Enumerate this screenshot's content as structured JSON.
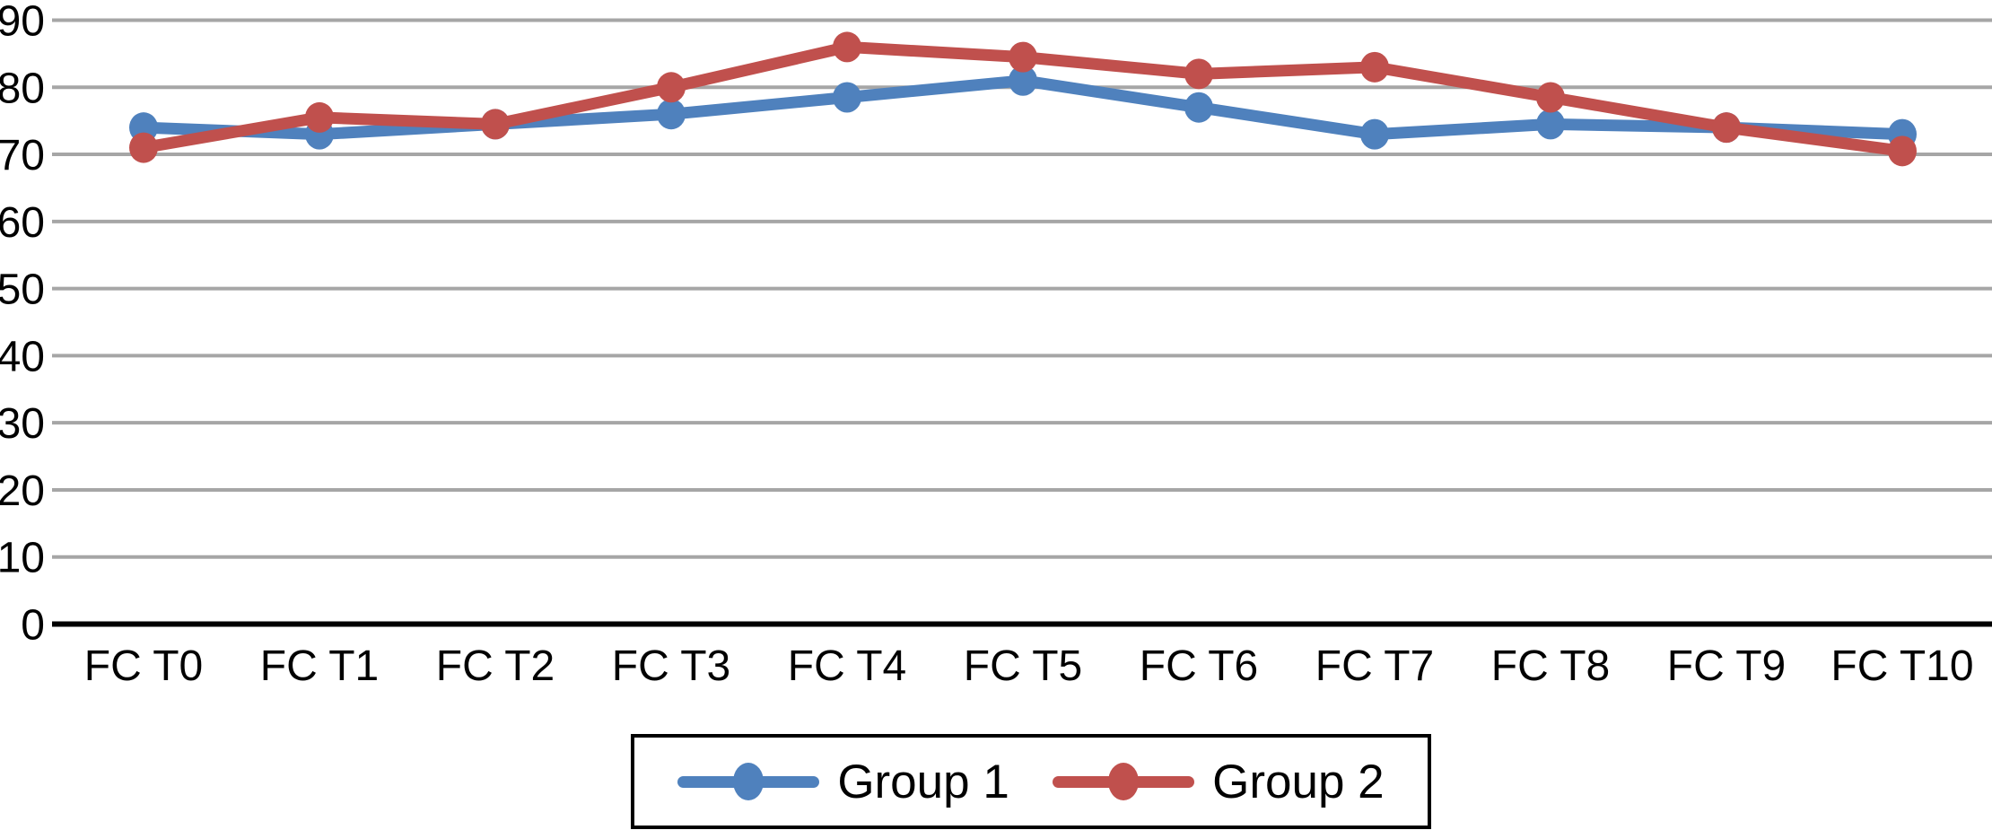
{
  "figure": {
    "background_color": "#ffffff",
    "text_color": "#000000"
  },
  "chart_data": {
    "type": "line",
    "title": "",
    "xlabel": "",
    "ylabel": "",
    "categories": [
      "FC T0",
      "FC T1",
      "FC T2",
      "FC T3",
      "FC T4",
      "FC T5",
      "FC T6",
      "FC T7",
      "FC T8",
      "FC T9",
      "FC T10"
    ],
    "series": [
      {
        "name": "Group 1",
        "color": "#4F81BD",
        "marker": "circle",
        "values": [
          74,
          73,
          74.5,
          76,
          78.5,
          81,
          77,
          73,
          74.5,
          74,
          73
        ]
      },
      {
        "name": "Group 2",
        "color": "#C0504D",
        "marker": "circle",
        "values": [
          71,
          75.5,
          74.5,
          80,
          86,
          84.5,
          82,
          83,
          78.5,
          74,
          70.5
        ]
      }
    ],
    "ylim": [
      0,
      90
    ],
    "yticks": [
      0,
      10,
      20,
      30,
      40,
      50,
      60,
      70,
      80,
      90
    ],
    "ytick_labels": [
      "0",
      "10",
      "20",
      "30",
      "40",
      "50",
      "60",
      "70",
      "80",
      "90"
    ],
    "grid": "horizontal-only",
    "gridline_color": "#A6A6A6",
    "axis_line_color": "#000000",
    "legend_position": "bottom-center",
    "legend_border_color": "#000000"
  }
}
